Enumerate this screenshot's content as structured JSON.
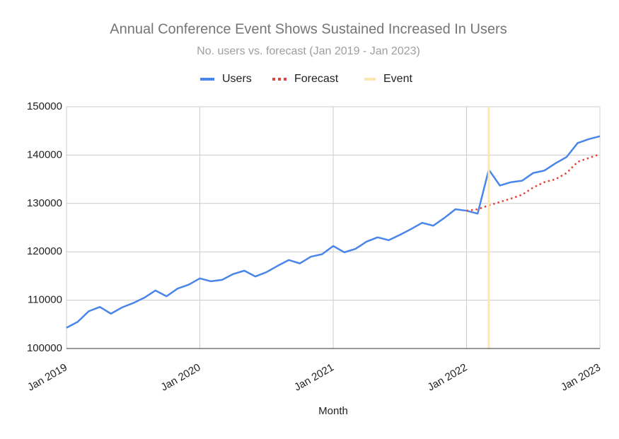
{
  "chart_data": {
    "type": "line",
    "title": "Annual Conference Event Shows Sustained Increased In Users",
    "subtitle": "No. users vs. forecast (Jan 2019 - Jan 2023)",
    "x_label": "Month",
    "x": [
      "Jan 2019",
      "Feb 2019",
      "Mar 2019",
      "Apr 2019",
      "May 2019",
      "Jun 2019",
      "Jul 2019",
      "Aug 2019",
      "Sep 2019",
      "Oct 2019",
      "Nov 2019",
      "Dec 2019",
      "Jan 2020",
      "Feb 2020",
      "Mar 2020",
      "Apr 2020",
      "May 2020",
      "Jun 2020",
      "Jul 2020",
      "Aug 2020",
      "Sep 2020",
      "Oct 2020",
      "Nov 2020",
      "Dec 2020",
      "Jan 2021",
      "Feb 2021",
      "Mar 2021",
      "Apr 2021",
      "May 2021",
      "Jun 2021",
      "Jul 2021",
      "Aug 2021",
      "Sep 2021",
      "Oct 2021",
      "Nov 2021",
      "Dec 2021",
      "Jan 2022",
      "Feb 2022",
      "Mar 2022",
      "Apr 2022",
      "May 2022",
      "Jun 2022",
      "Jul 2022",
      "Aug 2022",
      "Sep 2022",
      "Oct 2022",
      "Nov 2022",
      "Dec 2022",
      "Jan 2023"
    ],
    "xticks": [
      "Jan 2019",
      "Jan 2020",
      "Jan 2021",
      "Jan 2022",
      "Jan 2023"
    ],
    "series": [
      {
        "name": "Users",
        "color": "#4a86e8",
        "style": "solid",
        "values": [
          104300,
          105500,
          107700,
          108600,
          107200,
          108500,
          109400,
          110500,
          112000,
          110800,
          112400,
          113200,
          114500,
          113900,
          114200,
          115400,
          116100,
          114900,
          115800,
          117100,
          118300,
          117600,
          119000,
          119500,
          121200,
          119900,
          120600,
          122100,
          123000,
          122400,
          123500,
          124700,
          126000,
          125400,
          127000,
          128800,
          128500,
          127900,
          137000,
          133700,
          134400,
          134700,
          136300,
          136800,
          138300,
          139600,
          142500,
          143300,
          143900
        ]
      },
      {
        "name": "Forecast",
        "color": "#e0443a",
        "style": "dotted",
        "values": [
          null,
          null,
          null,
          null,
          null,
          null,
          null,
          null,
          null,
          null,
          null,
          null,
          null,
          null,
          null,
          null,
          null,
          null,
          null,
          null,
          null,
          null,
          null,
          null,
          null,
          null,
          null,
          null,
          null,
          null,
          null,
          null,
          null,
          null,
          null,
          null,
          128500,
          128800,
          129600,
          130300,
          131000,
          131800,
          133300,
          134400,
          135000,
          136300,
          138600,
          139400,
          140200
        ]
      },
      {
        "name": "Event",
        "color": "#fde6b0",
        "style": "event",
        "at": "Mar 2022"
      }
    ],
    "ylim": [
      100000,
      150000
    ],
    "yticks": [
      100000,
      110000,
      120000,
      130000,
      140000,
      150000
    ],
    "grid": true,
    "legend": "top"
  }
}
